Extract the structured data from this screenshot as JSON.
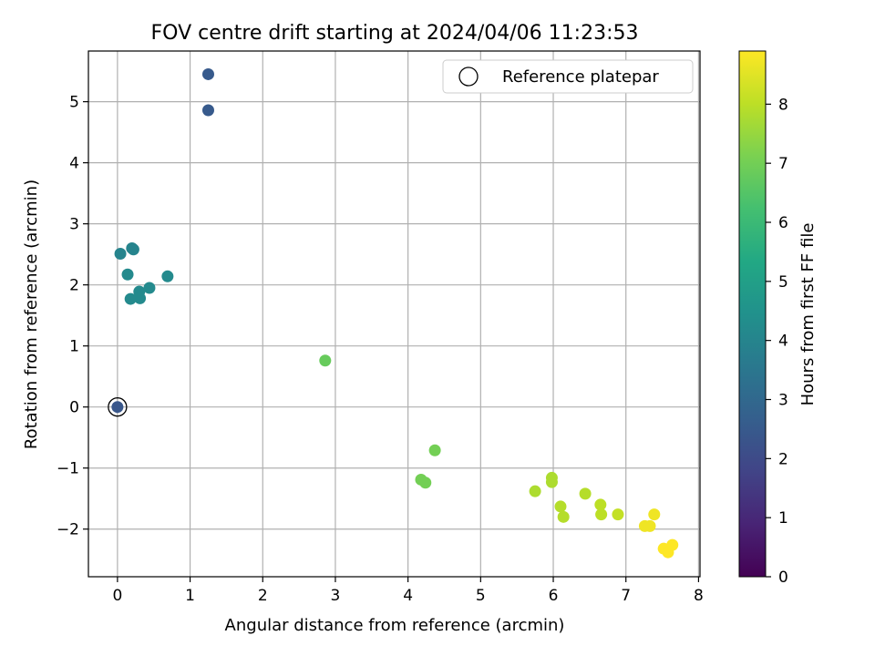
{
  "chart_data": {
    "type": "scatter",
    "title": "FOV centre drift starting at 2024/04/06 11:23:53",
    "xlabel": "Angular distance from reference (arcmin)",
    "ylabel": "Rotation from reference (arcmin)",
    "xlim": [
      -0.4,
      8.02
    ],
    "ylim": [
      -2.78,
      5.83
    ],
    "xticks": [
      "0",
      "1",
      "2",
      "3",
      "4",
      "5",
      "6",
      "7",
      "8"
    ],
    "yticks": [
      "−2",
      "−1",
      "0",
      "1",
      "2",
      "3",
      "4",
      "5"
    ],
    "grid": true,
    "legend": {
      "location": "upper right",
      "entries": [
        "Reference platepar"
      ]
    },
    "colorbar": {
      "label": "Hours from first FF file",
      "range": [
        0,
        8.9
      ],
      "colormap": "viridis",
      "ticks": [
        "0",
        "1",
        "2",
        "3",
        "4",
        "5",
        "6",
        "7",
        "8"
      ]
    },
    "reference_point": {
      "x": 0,
      "y": 0
    },
    "series": [
      {
        "points": [
          {
            "x": 0.0,
            "y": 0.0,
            "h": 2.4
          },
          {
            "x": 1.25,
            "y": 5.45,
            "h": 2.5
          },
          {
            "x": 1.25,
            "y": 4.86,
            "h": 2.5
          },
          {
            "x": 0.04,
            "y": 2.51,
            "h": 4.0
          },
          {
            "x": 0.2,
            "y": 2.6,
            "h": 4.0
          },
          {
            "x": 0.22,
            "y": 2.58,
            "h": 4.0
          },
          {
            "x": 0.14,
            "y": 2.17,
            "h": 4.2
          },
          {
            "x": 0.18,
            "y": 1.77,
            "h": 4.2
          },
          {
            "x": 0.3,
            "y": 1.89,
            "h": 4.2
          },
          {
            "x": 0.31,
            "y": 1.78,
            "h": 4.2
          },
          {
            "x": 0.44,
            "y": 1.95,
            "h": 4.2
          },
          {
            "x": 0.69,
            "y": 2.14,
            "h": 4.2
          },
          {
            "x": 2.86,
            "y": 0.76,
            "h": 6.8
          },
          {
            "x": 4.37,
            "y": -0.71,
            "h": 7.0
          },
          {
            "x": 4.18,
            "y": -1.19,
            "h": 7.0
          },
          {
            "x": 4.24,
            "y": -1.24,
            "h": 7.0
          },
          {
            "x": 5.75,
            "y": -1.38,
            "h": 7.8
          },
          {
            "x": 5.98,
            "y": -1.16,
            "h": 7.8
          },
          {
            "x": 5.98,
            "y": -1.23,
            "h": 7.8
          },
          {
            "x": 6.1,
            "y": -1.63,
            "h": 7.9
          },
          {
            "x": 6.14,
            "y": -1.8,
            "h": 7.9
          },
          {
            "x": 6.44,
            "y": -1.42,
            "h": 7.9
          },
          {
            "x": 6.65,
            "y": -1.6,
            "h": 8.0
          },
          {
            "x": 6.66,
            "y": -1.76,
            "h": 8.0
          },
          {
            "x": 6.89,
            "y": -1.76,
            "h": 8.1
          },
          {
            "x": 7.26,
            "y": -1.95,
            "h": 8.7
          },
          {
            "x": 7.33,
            "y": -1.95,
            "h": 8.7
          },
          {
            "x": 7.39,
            "y": -1.76,
            "h": 8.7
          },
          {
            "x": 7.52,
            "y": -2.32,
            "h": 8.9
          },
          {
            "x": 7.58,
            "y": -2.38,
            "h": 8.9
          },
          {
            "x": 7.64,
            "y": -2.26,
            "h": 8.9
          }
        ]
      }
    ]
  }
}
